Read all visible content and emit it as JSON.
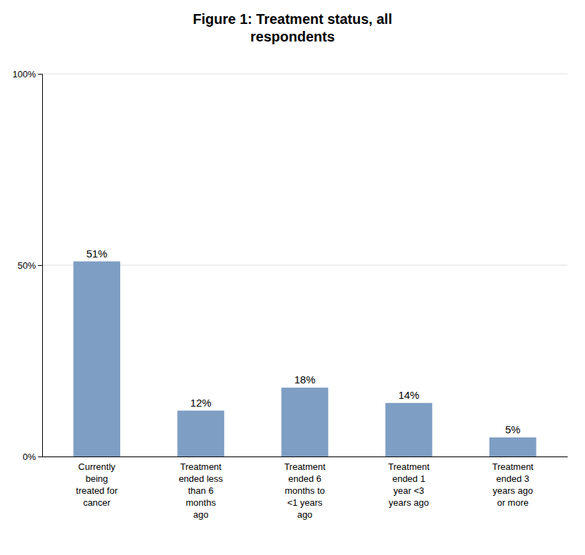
{
  "chart_data": {
    "type": "bar",
    "title": "Figure 1: Treatment status, all\nrespondents",
    "categories": [
      "Currently\nbeing\ntreated for\ncancer",
      "Treatment\nended less\nthan 6\nmonths\nago",
      "Treatment\nended 6\nmonths to\n<1 years\nago",
      "Treatment\nended 1\nyear <3\nyears ago",
      "Treatment\nended 3\nyears ago\nor more"
    ],
    "values": [
      51,
      12,
      18,
      14,
      5
    ],
    "value_labels": [
      "51%",
      "12%",
      "18%",
      "14%",
      "5%"
    ],
    "data_labels": true,
    "color": "#7f9ec4",
    "ylim": [
      0,
      100
    ],
    "yticks": [
      {
        "value": 0,
        "label": "0%"
      },
      {
        "value": 50,
        "label": "50%"
      },
      {
        "value": 100,
        "label": "100%"
      }
    ],
    "grid": true
  }
}
